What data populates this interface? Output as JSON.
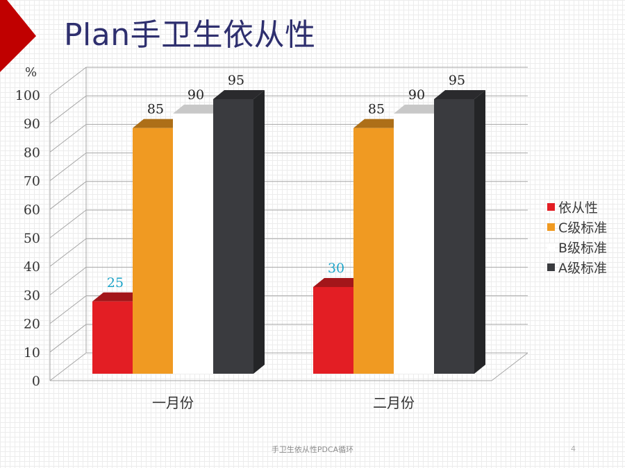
{
  "slide": {
    "title": "Plan手卫生依从性",
    "footer": "手卫生依从性PDCA循环",
    "page_number": "4",
    "accent_color": "#c00000"
  },
  "chart_data": {
    "type": "bar",
    "ylabel": "%",
    "ylim": [
      0,
      100
    ],
    "yticks": [
      0,
      10,
      20,
      30,
      40,
      50,
      60,
      70,
      80,
      90,
      100
    ],
    "categories": [
      "一月份",
      "二月份"
    ],
    "series": [
      {
        "name": "依从性",
        "values": [
          25,
          30
        ],
        "color": "#e31e24",
        "label_color": "#1aa3c8"
      },
      {
        "name": "C级标准",
        "values": [
          85,
          85
        ],
        "color": "#f09a22",
        "label_color": "#222222"
      },
      {
        "name": "B级标准",
        "values": [
          90,
          90
        ],
        "color": "#ffffff",
        "label_color": "#222222"
      },
      {
        "name": "A级标准",
        "values": [
          95,
          95
        ],
        "color": "#3a3b3f",
        "label_color": "#222222"
      }
    ],
    "grid": true,
    "legend_position": "right",
    "three_d": true
  }
}
